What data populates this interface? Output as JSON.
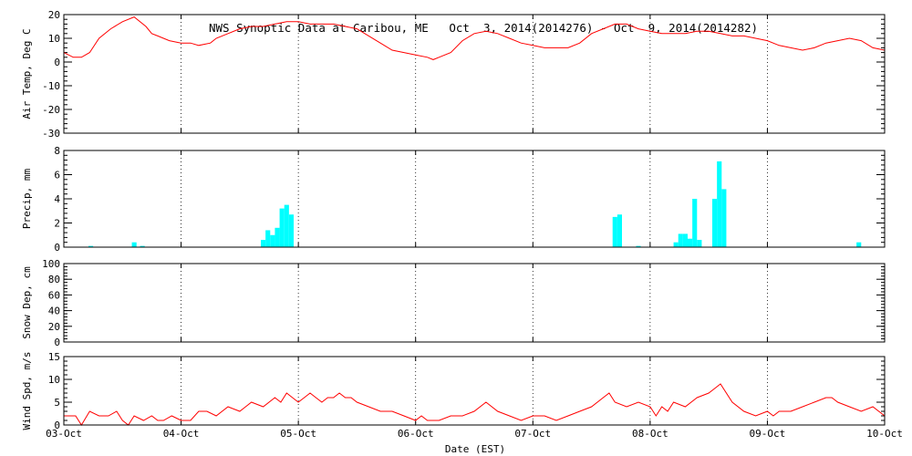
{
  "chart_data": {
    "type": "line",
    "title": "NWS Synoptic Data at Caribou, ME   Oct  3, 2014(2014276) - Oct  9, 2014(2014282)",
    "xlabel": "Date (EST)",
    "x_ticks": [
      "03-Oct",
      "04-Oct",
      "05-Oct",
      "06-Oct",
      "07-Oct",
      "08-Oct",
      "09-Oct",
      "10-Oct"
    ],
    "xlim": [
      0,
      7
    ],
    "colors": {
      "temp": "#ff0000",
      "precip": "#00ffff",
      "wind": "#ff0000"
    },
    "panels": [
      {
        "id": "temp",
        "type": "line",
        "ylabel": "Air Temp, Deg C",
        "ylim": [
          -30,
          20
        ],
        "yticks": [
          -30,
          -20,
          -10,
          0,
          10,
          20
        ],
        "x": [
          0,
          0.08,
          0.15,
          0.22,
          0.3,
          0.4,
          0.5,
          0.6,
          0.7,
          0.75,
          0.8,
          0.9,
          1.0,
          1.08,
          1.15,
          1.25,
          1.3,
          1.4,
          1.5,
          1.6,
          1.7,
          1.8,
          1.9,
          2.0,
          2.1,
          2.2,
          2.3,
          2.4,
          2.5,
          2.6,
          2.7,
          2.8,
          2.9,
          3.0,
          3.1,
          3.15,
          3.2,
          3.3,
          3.4,
          3.5,
          3.6,
          3.7,
          3.8,
          3.9,
          4.0,
          4.1,
          4.2,
          4.3,
          4.4,
          4.5,
          4.6,
          4.7,
          4.8,
          4.9,
          5.0,
          5.1,
          5.2,
          5.3,
          5.4,
          5.5,
          5.6,
          5.7,
          5.8,
          5.9,
          6.0,
          6.1,
          6.2,
          6.3,
          6.4,
          6.5,
          6.6,
          6.7,
          6.8,
          6.9,
          7.0
        ],
        "y": [
          4,
          2,
          2,
          4,
          10,
          14,
          17,
          19,
          15,
          12,
          11,
          9,
          8,
          8,
          7,
          8,
          10,
          12,
          14,
          15,
          15,
          16,
          17,
          17,
          16,
          16,
          16,
          15,
          14,
          11,
          8,
          5,
          4,
          3,
          2,
          1,
          2,
          4,
          9,
          12,
          13,
          12,
          10,
          8,
          7,
          6,
          6,
          6,
          8,
          12,
          14,
          16,
          16,
          14,
          13,
          12,
          12,
          12,
          13,
          13,
          12,
          11,
          11,
          10,
          9,
          7,
          6,
          5,
          6,
          8,
          9,
          10,
          9,
          6,
          5
        ]
      },
      {
        "id": "precip",
        "type": "bar",
        "ylabel": "Precip, mm",
        "ylim": [
          0,
          8
        ],
        "yticks": [
          0,
          2,
          4,
          6,
          8
        ],
        "bar_width": 0.04,
        "x": [
          0.23,
          0.6,
          0.67,
          1.7,
          1.74,
          1.78,
          1.82,
          1.86,
          1.9,
          1.94,
          4.7,
          4.74,
          4.9,
          5.22,
          5.26,
          5.3,
          5.34,
          5.38,
          5.42,
          5.55,
          5.59,
          5.63,
          6.78
        ],
        "values": [
          0.1,
          0.4,
          0.1,
          0.6,
          1.4,
          1.0,
          1.6,
          3.2,
          3.5,
          2.7,
          2.5,
          2.7,
          0.1,
          0.4,
          1.1,
          1.1,
          0.7,
          4.0,
          0.6,
          4.0,
          7.1,
          4.8,
          0.4
        ]
      },
      {
        "id": "snow",
        "type": "line",
        "ylabel": "Snow Dep, cm",
        "ylim": [
          0,
          100
        ],
        "yticks": [
          0,
          20,
          40,
          60,
          80,
          100
        ],
        "x": [],
        "y": []
      },
      {
        "id": "wind",
        "type": "line",
        "ylabel": "Wind Spd, m/s",
        "ylim": [
          0,
          15
        ],
        "yticks": [
          0,
          5,
          10,
          15
        ],
        "x": [
          0,
          0.1,
          0.15,
          0.22,
          0.3,
          0.38,
          0.45,
          0.5,
          0.55,
          0.6,
          0.68,
          0.75,
          0.8,
          0.85,
          0.92,
          1.0,
          1.08,
          1.15,
          1.22,
          1.3,
          1.4,
          1.5,
          1.55,
          1.6,
          1.7,
          1.8,
          1.85,
          1.9,
          1.95,
          2.0,
          2.05,
          2.1,
          2.15,
          2.2,
          2.25,
          2.3,
          2.35,
          2.4,
          2.45,
          2.5,
          2.6,
          2.7,
          2.8,
          2.9,
          3.0,
          3.05,
          3.1,
          3.2,
          3.3,
          3.4,
          3.5,
          3.6,
          3.7,
          3.8,
          3.9,
          4.0,
          4.1,
          4.2,
          4.3,
          4.4,
          4.5,
          4.6,
          4.65,
          4.7,
          4.8,
          4.9,
          5.0,
          5.05,
          5.1,
          5.15,
          5.2,
          5.3,
          5.4,
          5.5,
          5.55,
          5.6,
          5.7,
          5.8,
          5.9,
          6.0,
          6.05,
          6.1,
          6.2,
          6.3,
          6.4,
          6.5,
          6.55,
          6.6,
          6.7,
          6.8,
          6.9,
          7.0
        ],
        "y": [
          2,
          2,
          0,
          3,
          2,
          2,
          3,
          1,
          0,
          2,
          1,
          2,
          1,
          1,
          2,
          1,
          1,
          3,
          3,
          2,
          4,
          3,
          4,
          5,
          4,
          6,
          5,
          7,
          6,
          5,
          6,
          7,
          6,
          5,
          6,
          6,
          7,
          6,
          6,
          5,
          4,
          3,
          3,
          2,
          1,
          2,
          1,
          1,
          2,
          2,
          3,
          5,
          3,
          2,
          1,
          2,
          2,
          1,
          2,
          3,
          4,
          6,
          7,
          5,
          4,
          5,
          4,
          2,
          4,
          3,
          5,
          4,
          6,
          7,
          8,
          9,
          5,
          3,
          2,
          3,
          2,
          3,
          3,
          4,
          5,
          6,
          6,
          5,
          4,
          3,
          4,
          2
        ]
      }
    ]
  }
}
